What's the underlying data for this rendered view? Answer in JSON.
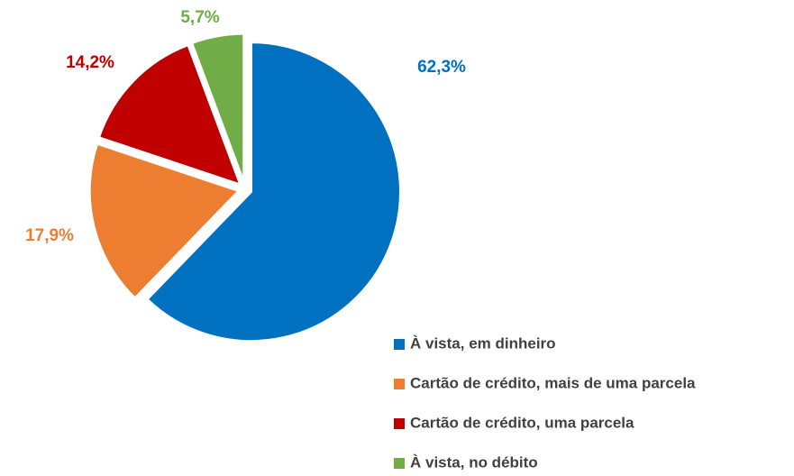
{
  "chart_data": {
    "type": "pie",
    "categories": [
      "À vista, em dinheiro",
      "Cartão de crédito, mais de uma parcela",
      "Cartão de crédito, uma parcela",
      "À vista, no débito"
    ],
    "values": [
      62.3,
      17.9,
      14.2,
      5.7
    ],
    "value_labels": [
      "62,3%",
      "17,9%",
      "14,2%",
      "5,7%"
    ],
    "colors": [
      "#0070c0",
      "#ed7d31",
      "#c00000",
      "#70ad47"
    ],
    "legend": "bottom-right"
  }
}
